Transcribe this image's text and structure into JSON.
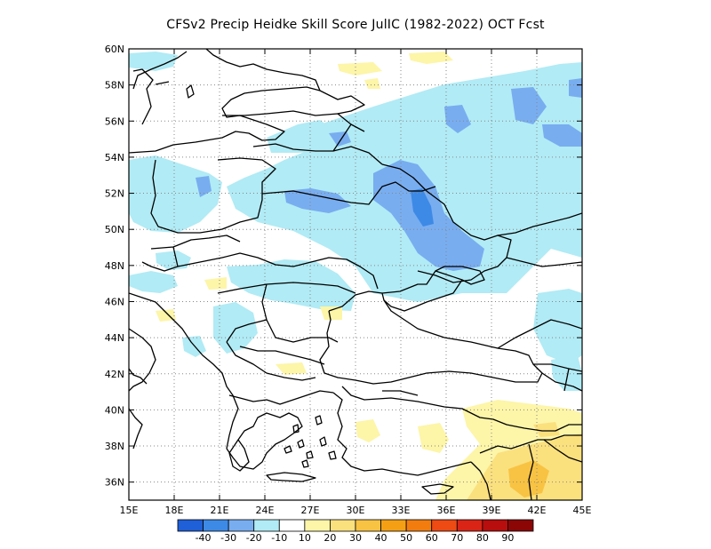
{
  "title": "CFSv2 Precip Heidke Skill Score JulIC (1982-2022) OCT Fcst",
  "map": {
    "lon_range": [
      15,
      45
    ],
    "lat_range": [
      35,
      60
    ],
    "grid": "dotted",
    "lon_ticks": [
      "15E",
      "18E",
      "21E",
      "24E",
      "27E",
      "30E",
      "33E",
      "36E",
      "39E",
      "42E",
      "45E"
    ],
    "lat_ticks": [
      "36N",
      "38N",
      "40N",
      "42N",
      "44N",
      "46N",
      "48N",
      "50N",
      "52N",
      "54N",
      "56N",
      "58N",
      "60N"
    ]
  },
  "colorbar": {
    "colors": [
      "#1f5fd8",
      "#3d8ae6",
      "#78adf0",
      "#b1ebf5",
      "#ffffff",
      "#fdf5a8",
      "#fbe07e",
      "#f8c342",
      "#f5a014",
      "#f27d0e",
      "#ee4a14",
      "#d92416",
      "#b80e0e",
      "#8c0606"
    ],
    "labels": [
      "-40",
      "-30",
      "-20",
      "-10",
      "10",
      "20",
      "30",
      "40",
      "50",
      "60",
      "70",
      "80",
      "90"
    ]
  }
}
